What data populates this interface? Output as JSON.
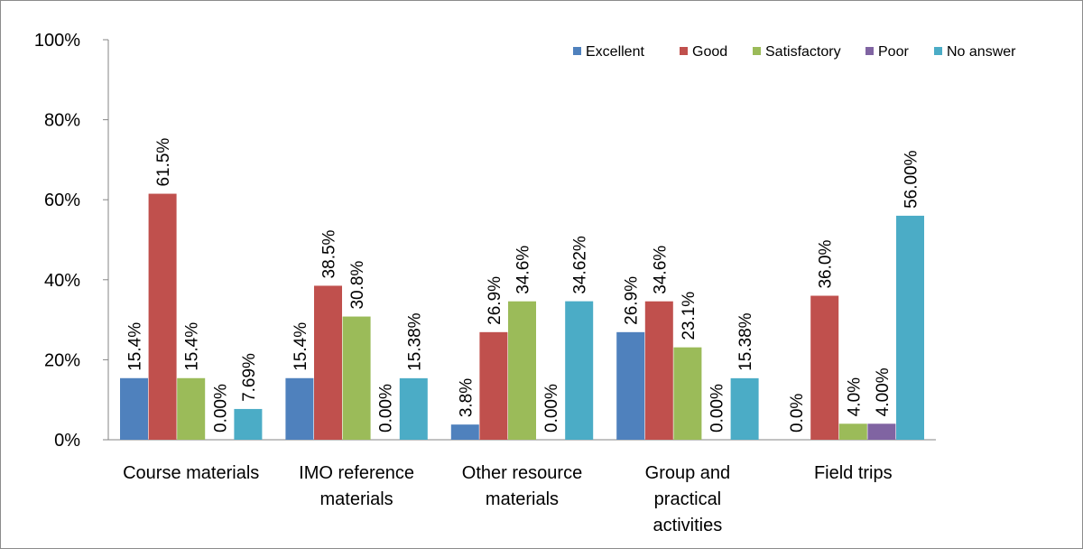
{
  "chart_data": {
    "type": "bar",
    "categories": [
      [
        "Course materials"
      ],
      [
        "IMO reference",
        "materials"
      ],
      [
        "Other resource",
        "materials"
      ],
      [
        "Group and",
        "practical",
        "activities"
      ],
      [
        "Field trips"
      ]
    ],
    "series": [
      {
        "name": "Excellent",
        "color": "#4f81bd",
        "values": [
          0.154,
          0.154,
          0.038,
          0.269,
          0.0
        ],
        "labels": [
          "15.4%",
          "15.4%",
          "3.8%",
          "26.9%",
          "0.0%"
        ]
      },
      {
        "name": "Good",
        "color": "#c0504d",
        "values": [
          0.615,
          0.385,
          0.269,
          0.346,
          0.36
        ],
        "labels": [
          "61.5%",
          "38.5%",
          "26.9%",
          "34.6%",
          "36.0%"
        ]
      },
      {
        "name": "Satisfactory",
        "color": "#9bbb59",
        "values": [
          0.154,
          0.308,
          0.346,
          0.231,
          0.04
        ],
        "labels": [
          "15.4%",
          "30.8%",
          "34.6%",
          "23.1%",
          "4.0%"
        ]
      },
      {
        "name": "Poor",
        "color": "#8064a2",
        "values": [
          0.0,
          0.0,
          0.0,
          0.0,
          0.04
        ],
        "labels": [
          "0.00%",
          "0.00%",
          "0.00%",
          "0.00%",
          "4.00%"
        ]
      },
      {
        "name": "No answer",
        "color": "#4bacc6",
        "values": [
          0.0769,
          0.1538,
          0.3462,
          0.1538,
          0.56
        ],
        "labels": [
          "7.69%",
          "15.38%",
          "34.62%",
          "15.38%",
          "56.00%"
        ]
      }
    ],
    "yticks": [
      "0%",
      "20%",
      "40%",
      "60%",
      "80%",
      "100%"
    ],
    "ylim": [
      0,
      1
    ],
    "grid": false,
    "legend_position": "top-right"
  }
}
